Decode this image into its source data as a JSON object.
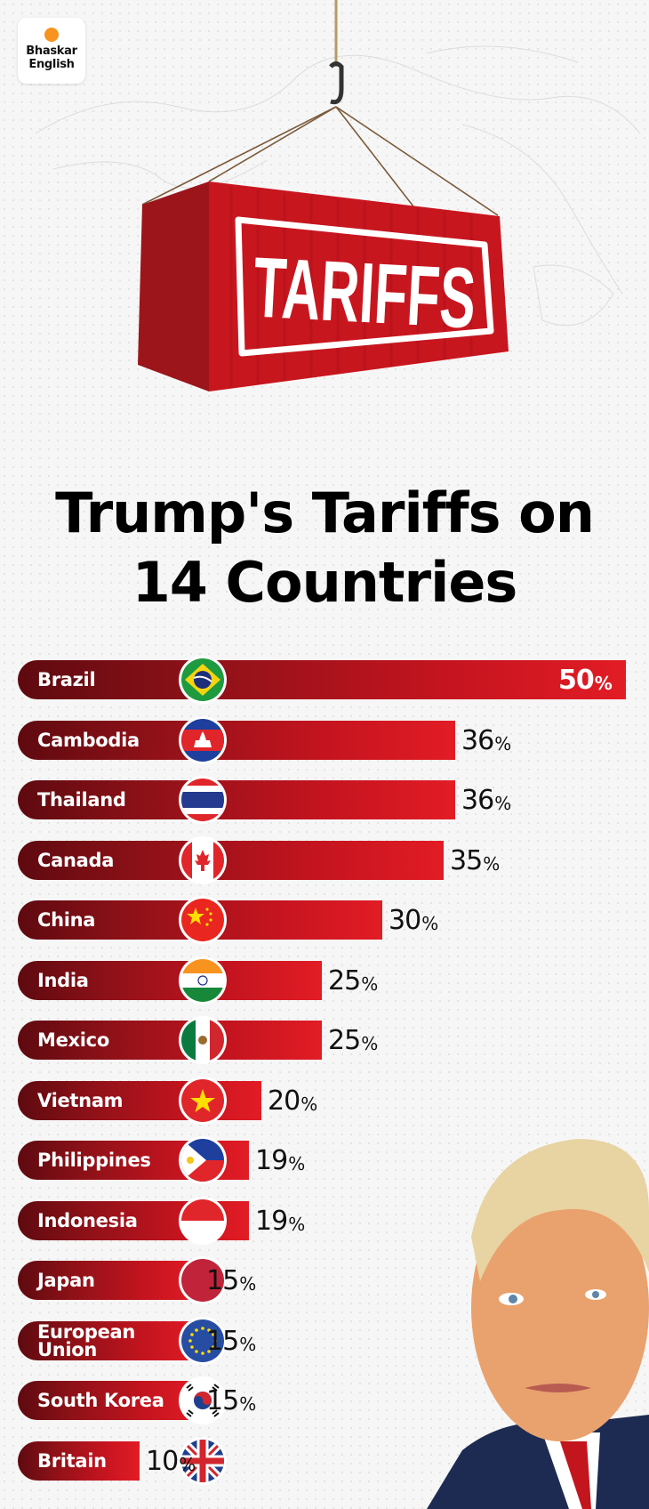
{
  "logo": {
    "line1": "Bhaskar",
    "line2": "English",
    "sun_color": "#f7931e"
  },
  "hero": {
    "container_text": "TARIFFS",
    "container_color": "#c8161f"
  },
  "title": {
    "line1": "Trump's Tariffs on",
    "line2": "14 Countries"
  },
  "chart_data": {
    "type": "bar",
    "orientation": "horizontal",
    "title": "Trump's Tariffs on 14 Countries",
    "xlabel": "",
    "ylabel": "",
    "unit": "%",
    "xlim": [
      0,
      50
    ],
    "bar_color": "#e21c25",
    "categories": [
      "Brazil",
      "Cambodia",
      "Thailand",
      "Canada",
      "China",
      "India",
      "Mexico",
      "Vietnam",
      "Philippines",
      "Indonesia",
      "Japan",
      "European Union",
      "South Korea",
      "Britain"
    ],
    "values": [
      50,
      36,
      36,
      35,
      30,
      25,
      25,
      20,
      19,
      19,
      15,
      15,
      15,
      10
    ],
    "value_labels": [
      "50",
      "36",
      "36",
      "35",
      "30",
      "25",
      "25",
      "20",
      "19",
      "19",
      "15",
      "15",
      "15",
      "10"
    ],
    "flags": [
      "brazil-flag",
      "cambodia-flag",
      "thailand-flag",
      "canada-flag",
      "china-flag",
      "india-flag",
      "mexico-flag",
      "vietnam-flag",
      "philippines-flag",
      "indonesia-flag",
      "japan-flag",
      "eu-flag",
      "south-korea-flag",
      "uk-flag"
    ]
  }
}
